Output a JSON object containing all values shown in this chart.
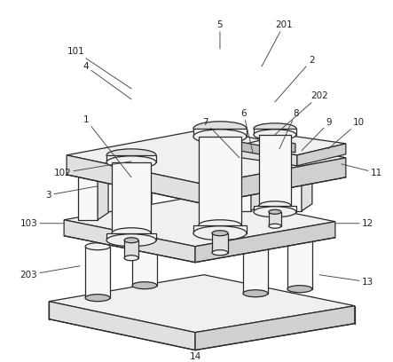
{
  "bg_color": "#ffffff",
  "lc": "#2a2a2a",
  "lw": 0.9,
  "tlw": 0.6,
  "fill_top": "#f0f0f0",
  "fill_left": "#e0e0e0",
  "fill_right": "#d0d0d0",
  "fill_dark": "#c0c0c0",
  "fill_white": "#f8f8f8",
  "annotation_fs": 7.5,
  "annotation_lw": 0.6,
  "annotation_color": "#222222"
}
